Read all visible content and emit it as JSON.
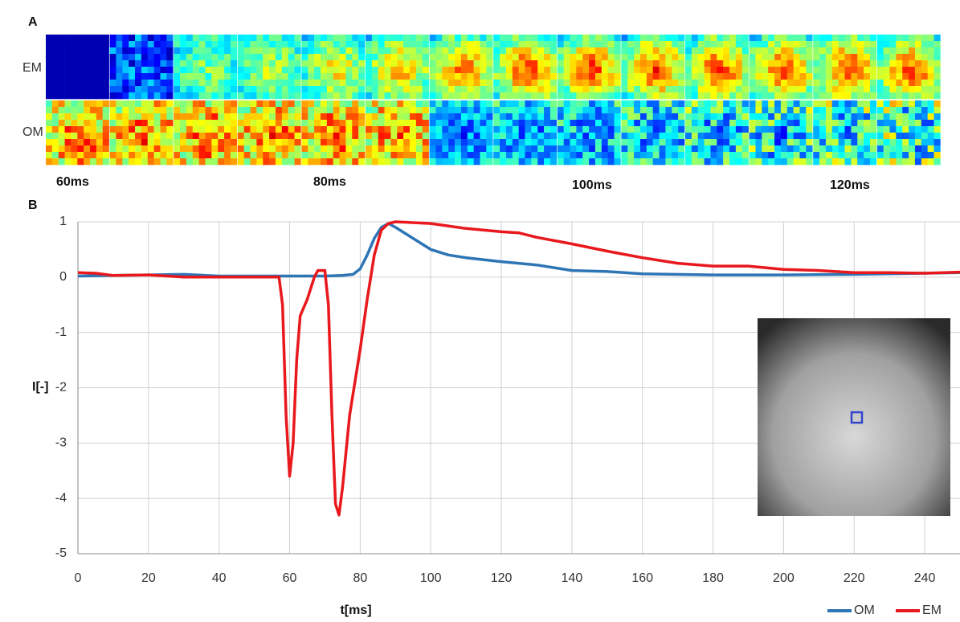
{
  "panel_a": {
    "label": "A",
    "rows": [
      "EM",
      "OM"
    ],
    "times": [
      "60ms",
      "80ms",
      "100ms",
      "120ms"
    ]
  },
  "chart_data": {
    "type": "line",
    "panel_label": "B",
    "x_label": "t[ms]",
    "y_label": "I[-]",
    "xlim": [
      0,
      250
    ],
    "ylim": [
      -5,
      1
    ],
    "xticks": [
      0,
      20,
      40,
      60,
      80,
      100,
      120,
      140,
      160,
      180,
      200,
      220,
      240
    ],
    "yticks": [
      -5,
      -4,
      -3,
      -2,
      -1,
      0,
      1
    ],
    "grid": true,
    "legend": "bottom-right",
    "series": [
      {
        "name": "OM",
        "color": "#2e75b6",
        "x": [
          0,
          10,
          20,
          30,
          40,
          50,
          60,
          70,
          75,
          78,
          80,
          82,
          84,
          86,
          88,
          90,
          95,
          100,
          105,
          110,
          120,
          130,
          140,
          150,
          160,
          180,
          200,
          220,
          240,
          250
        ],
        "values": [
          0.02,
          0.03,
          0.04,
          0.05,
          0.02,
          0.02,
          0.02,
          0.02,
          0.03,
          0.05,
          0.15,
          0.4,
          0.7,
          0.9,
          0.97,
          0.9,
          0.7,
          0.5,
          0.4,
          0.35,
          0.28,
          0.22,
          0.12,
          0.1,
          0.06,
          0.04,
          0.04,
          0.05,
          0.07,
          0.08
        ]
      },
      {
        "name": "EM",
        "color": "#e8181c",
        "x": [
          0,
          5,
          10,
          20,
          30,
          40,
          50,
          57,
          58,
          59,
          60,
          61,
          62,
          63,
          65,
          67,
          68,
          70,
          71,
          72,
          73,
          74,
          75,
          77,
          80,
          82,
          84,
          86,
          88,
          90,
          100,
          110,
          120,
          125,
          130,
          140,
          150,
          160,
          170,
          180,
          190,
          200,
          210,
          220,
          230,
          240,
          250
        ],
        "values": [
          0.08,
          0.07,
          0.03,
          0.04,
          0.0,
          0.0,
          0.0,
          0.0,
          -0.5,
          -2.5,
          -3.6,
          -3.0,
          -1.5,
          -0.7,
          -0.4,
          0.0,
          0.12,
          0.12,
          -0.5,
          -2.5,
          -4.1,
          -4.3,
          -3.8,
          -2.5,
          -1.3,
          -0.4,
          0.4,
          0.85,
          0.97,
          1.0,
          0.97,
          0.88,
          0.82,
          0.8,
          0.72,
          0.6,
          0.47,
          0.35,
          0.25,
          0.2,
          0.2,
          0.14,
          0.12,
          0.08,
          0.08,
          0.07,
          0.09
        ]
      }
    ]
  }
}
